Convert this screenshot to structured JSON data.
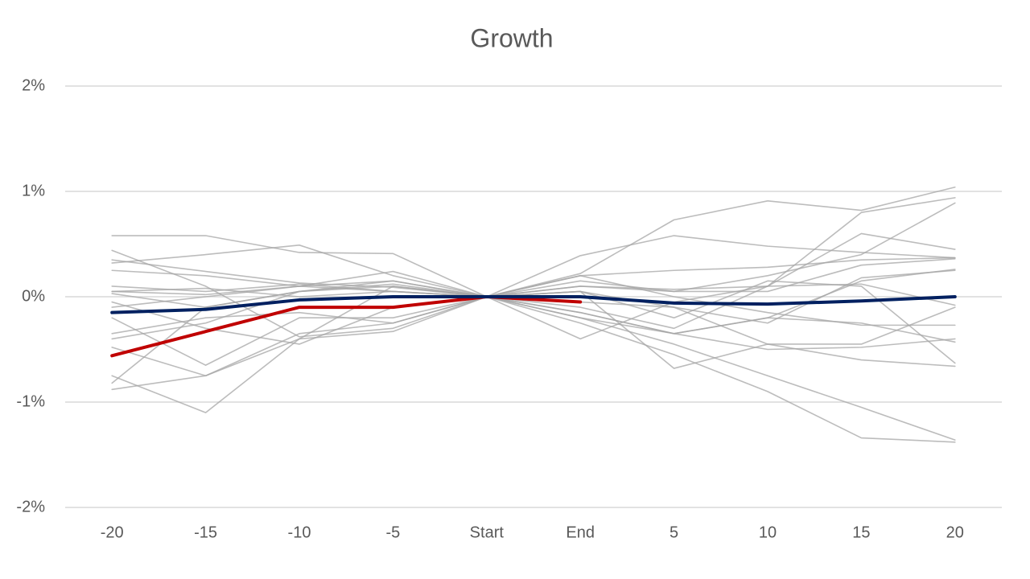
{
  "chart_data": {
    "type": "line",
    "title": "Growth",
    "categories": [
      "-20",
      "-15",
      "-10",
      "-5",
      "Start",
      "End",
      "5",
      "10",
      "15",
      "20"
    ],
    "ylim": [
      -2,
      2
    ],
    "yticks": [
      {
        "value": -2,
        "label": "-2%"
      },
      {
        "value": -1,
        "label": "-1%"
      },
      {
        "value": 0,
        "label": "0%"
      },
      {
        "value": 1,
        "label": "1%"
      },
      {
        "value": 2,
        "label": "2%"
      }
    ],
    "grid": true,
    "series": [
      {
        "color": "#a6a6a6",
        "values": [
          0.58,
          0.58,
          0.42,
          0.41,
          0,
          0.39,
          0.58,
          0.48,
          0.42,
          0.37
        ]
      },
      {
        "color": "#a6a6a6",
        "values": [
          0.44,
          0.1,
          -0.38,
          -0.3,
          0,
          -0.4,
          -0.05,
          0.1,
          0.6,
          0.45
        ]
      },
      {
        "color": "#a6a6a6",
        "values": [
          0.35,
          0.24,
          0.13,
          0.09,
          0,
          0.22,
          0.73,
          0.91,
          0.82,
          1.04
        ]
      },
      {
        "color": "#a6a6a6",
        "values": [
          0.32,
          0.4,
          0.49,
          0.2,
          0,
          -0.1,
          -0.3,
          0.1,
          0.8,
          0.94
        ]
      },
      {
        "color": "#a6a6a6",
        "values": [
          0.25,
          0.2,
          0.1,
          0.05,
          0,
          0.15,
          0.05,
          0.2,
          0.4,
          0.89
        ]
      },
      {
        "color": "#a6a6a6",
        "values": [
          0.05,
          0.02,
          0.1,
          0.24,
          0,
          -0.2,
          -0.35,
          -0.2,
          0.15,
          0.26
        ]
      },
      {
        "color": "#a6a6a6",
        "values": [
          0.03,
          -0.1,
          0.05,
          0.15,
          0,
          0.1,
          0.05,
          0.05,
          0.3,
          0.36
        ]
      },
      {
        "color": "#a6a6a6",
        "values": [
          -0.05,
          -0.3,
          -0.45,
          -0.1,
          0,
          0.2,
          0.25,
          0.28,
          0.35,
          0.37
        ]
      },
      {
        "color": "#a6a6a6",
        "values": [
          -0.2,
          -0.65,
          -0.2,
          -0.2,
          0,
          -0.05,
          -0.1,
          -0.45,
          -0.45,
          -0.1
        ]
      },
      {
        "color": "#a6a6a6",
        "values": [
          -0.35,
          -0.2,
          -0.15,
          -0.25,
          0,
          -0.25,
          -0.55,
          -0.9,
          -1.34,
          -1.38
        ]
      },
      {
        "color": "#a6a6a6",
        "values": [
          -0.4,
          -0.25,
          0.05,
          0.1,
          0,
          -0.2,
          -0.45,
          -0.75,
          -1.05,
          -1.36
        ]
      },
      {
        "color": "#a6a6a6",
        "values": [
          -0.48,
          -0.75,
          -0.35,
          -0.25,
          0,
          0.05,
          -0.68,
          -0.45,
          -0.6,
          -0.66
        ]
      },
      {
        "color": "#a6a6a6",
        "values": [
          -0.75,
          -1.1,
          -0.4,
          0.1,
          0,
          -0.15,
          -0.35,
          -0.5,
          -0.48,
          -0.4
        ]
      },
      {
        "color": "#a6a6a6",
        "values": [
          -0.82,
          -0.1,
          0.05,
          0.12,
          0,
          0.1,
          0.07,
          0.1,
          0.12,
          -0.08
        ]
      },
      {
        "color": "#a6a6a6",
        "values": [
          -0.88,
          -0.75,
          -0.4,
          -0.33,
          0,
          0.05,
          -0.1,
          -0.25,
          0.18,
          0.25
        ]
      },
      {
        "color": "#a6a6a6",
        "values": [
          0.05,
          0.08,
          0.0,
          0.05,
          0,
          -0.15,
          -0.35,
          -0.2,
          -0.25,
          -0.43
        ]
      },
      {
        "color": "#a6a6a6",
        "values": [
          0.1,
          0.05,
          0.12,
          0.05,
          0,
          0.2,
          0.0,
          -0.15,
          -0.27,
          -0.27
        ]
      },
      {
        "color": "#a6a6a6",
        "values": [
          -0.1,
          0,
          0.1,
          0.15,
          0,
          0.05,
          -0.2,
          0.15,
          0.1,
          -0.63
        ]
      },
      {
        "color": "#c00000",
        "values": [
          -0.56,
          -0.33,
          -0.1,
          -0.1,
          0,
          -0.05,
          null,
          null,
          null,
          null
        ]
      },
      {
        "color": "#002060",
        "values": [
          -0.15,
          -0.12,
          -0.03,
          0,
          0,
          0,
          -0.06,
          -0.07,
          -0.04,
          0
        ]
      }
    ]
  }
}
